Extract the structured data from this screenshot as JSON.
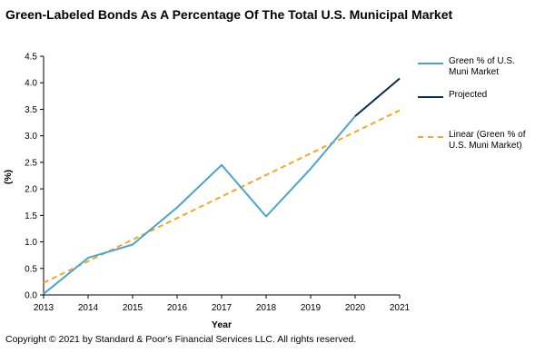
{
  "title": "Green-Labeled Bonds As A Percentage Of The Total U.S. Municipal Market",
  "copyright": "Copyright © 2021 by Standard & Poor's Financial Services LLC. All rights reserved.",
  "colors": {
    "green_share": "#4aa3cf",
    "projected": "#0b2a4f",
    "linear": "#f6a623",
    "axis": "#000000"
  },
  "chart_data": {
    "type": "line",
    "title": "Green-Labeled Bonds As A Percentage Of The Total U.S. Municipal Market",
    "xlabel": "Year",
    "ylabel": "(%)",
    "x": [
      2013,
      2014,
      2015,
      2016,
      2017,
      2018,
      2019,
      2020,
      2021
    ],
    "ylim": [
      0,
      4.5
    ],
    "yticks": [
      "0.0",
      "0.5",
      "1.0",
      "1.5",
      "2.0",
      "2.5",
      "3.0",
      "3.5",
      "4.0",
      "4.5"
    ],
    "xticks": [
      "2013",
      "2014",
      "2015",
      "2016",
      "2017",
      "2018",
      "2019",
      "2020",
      "2021"
    ],
    "grid": false,
    "legend": "right",
    "series": [
      {
        "name": "Green % of U.S. Muni Market",
        "x": [
          2013,
          2014,
          2015,
          2016,
          2017,
          2018,
          2019,
          2020
        ],
        "values": [
          0.02,
          0.7,
          0.95,
          1.65,
          2.45,
          1.48,
          2.38,
          3.37
        ],
        "color": "#4aa3cf",
        "style": "solid"
      },
      {
        "name": "Projected",
        "x": [
          2020,
          2021
        ],
        "values": [
          3.37,
          4.08
        ],
        "color": "#0b2a4f",
        "style": "solid"
      },
      {
        "name": "Linear (Green % of U.S. Muni Market)",
        "x": [
          2013,
          2021
        ],
        "values": [
          0.23,
          3.48
        ],
        "color": "#f6a623",
        "style": "dashed"
      }
    ]
  }
}
